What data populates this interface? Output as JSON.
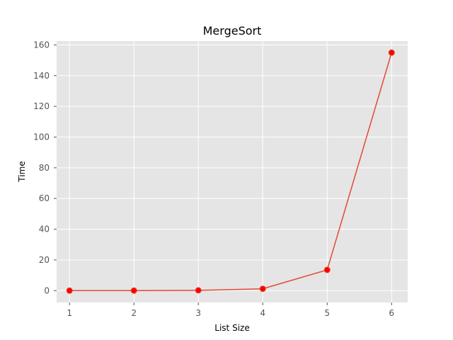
{
  "chart_data": {
    "type": "line",
    "title": "MergeSort",
    "xlabel": "List Size",
    "ylabel": "Time",
    "x": [
      1,
      2,
      3,
      4,
      5,
      6
    ],
    "series": [
      {
        "values": [
          0.02,
          0.05,
          0.2,
          1.2,
          13.5,
          155
        ],
        "color": "#e24a33",
        "marker_color": "#ff0000"
      }
    ],
    "xlim": [
      0.8,
      6.25
    ],
    "ylim": [
      -7.7,
      162.5
    ],
    "xticks": [
      1,
      2,
      3,
      4,
      5,
      6
    ],
    "yticks": [
      0,
      20,
      40,
      60,
      80,
      100,
      120,
      140,
      160
    ],
    "grid": true,
    "style": {
      "plot_bg": "#e5e5e5",
      "grid_color": "#ffffff"
    }
  }
}
